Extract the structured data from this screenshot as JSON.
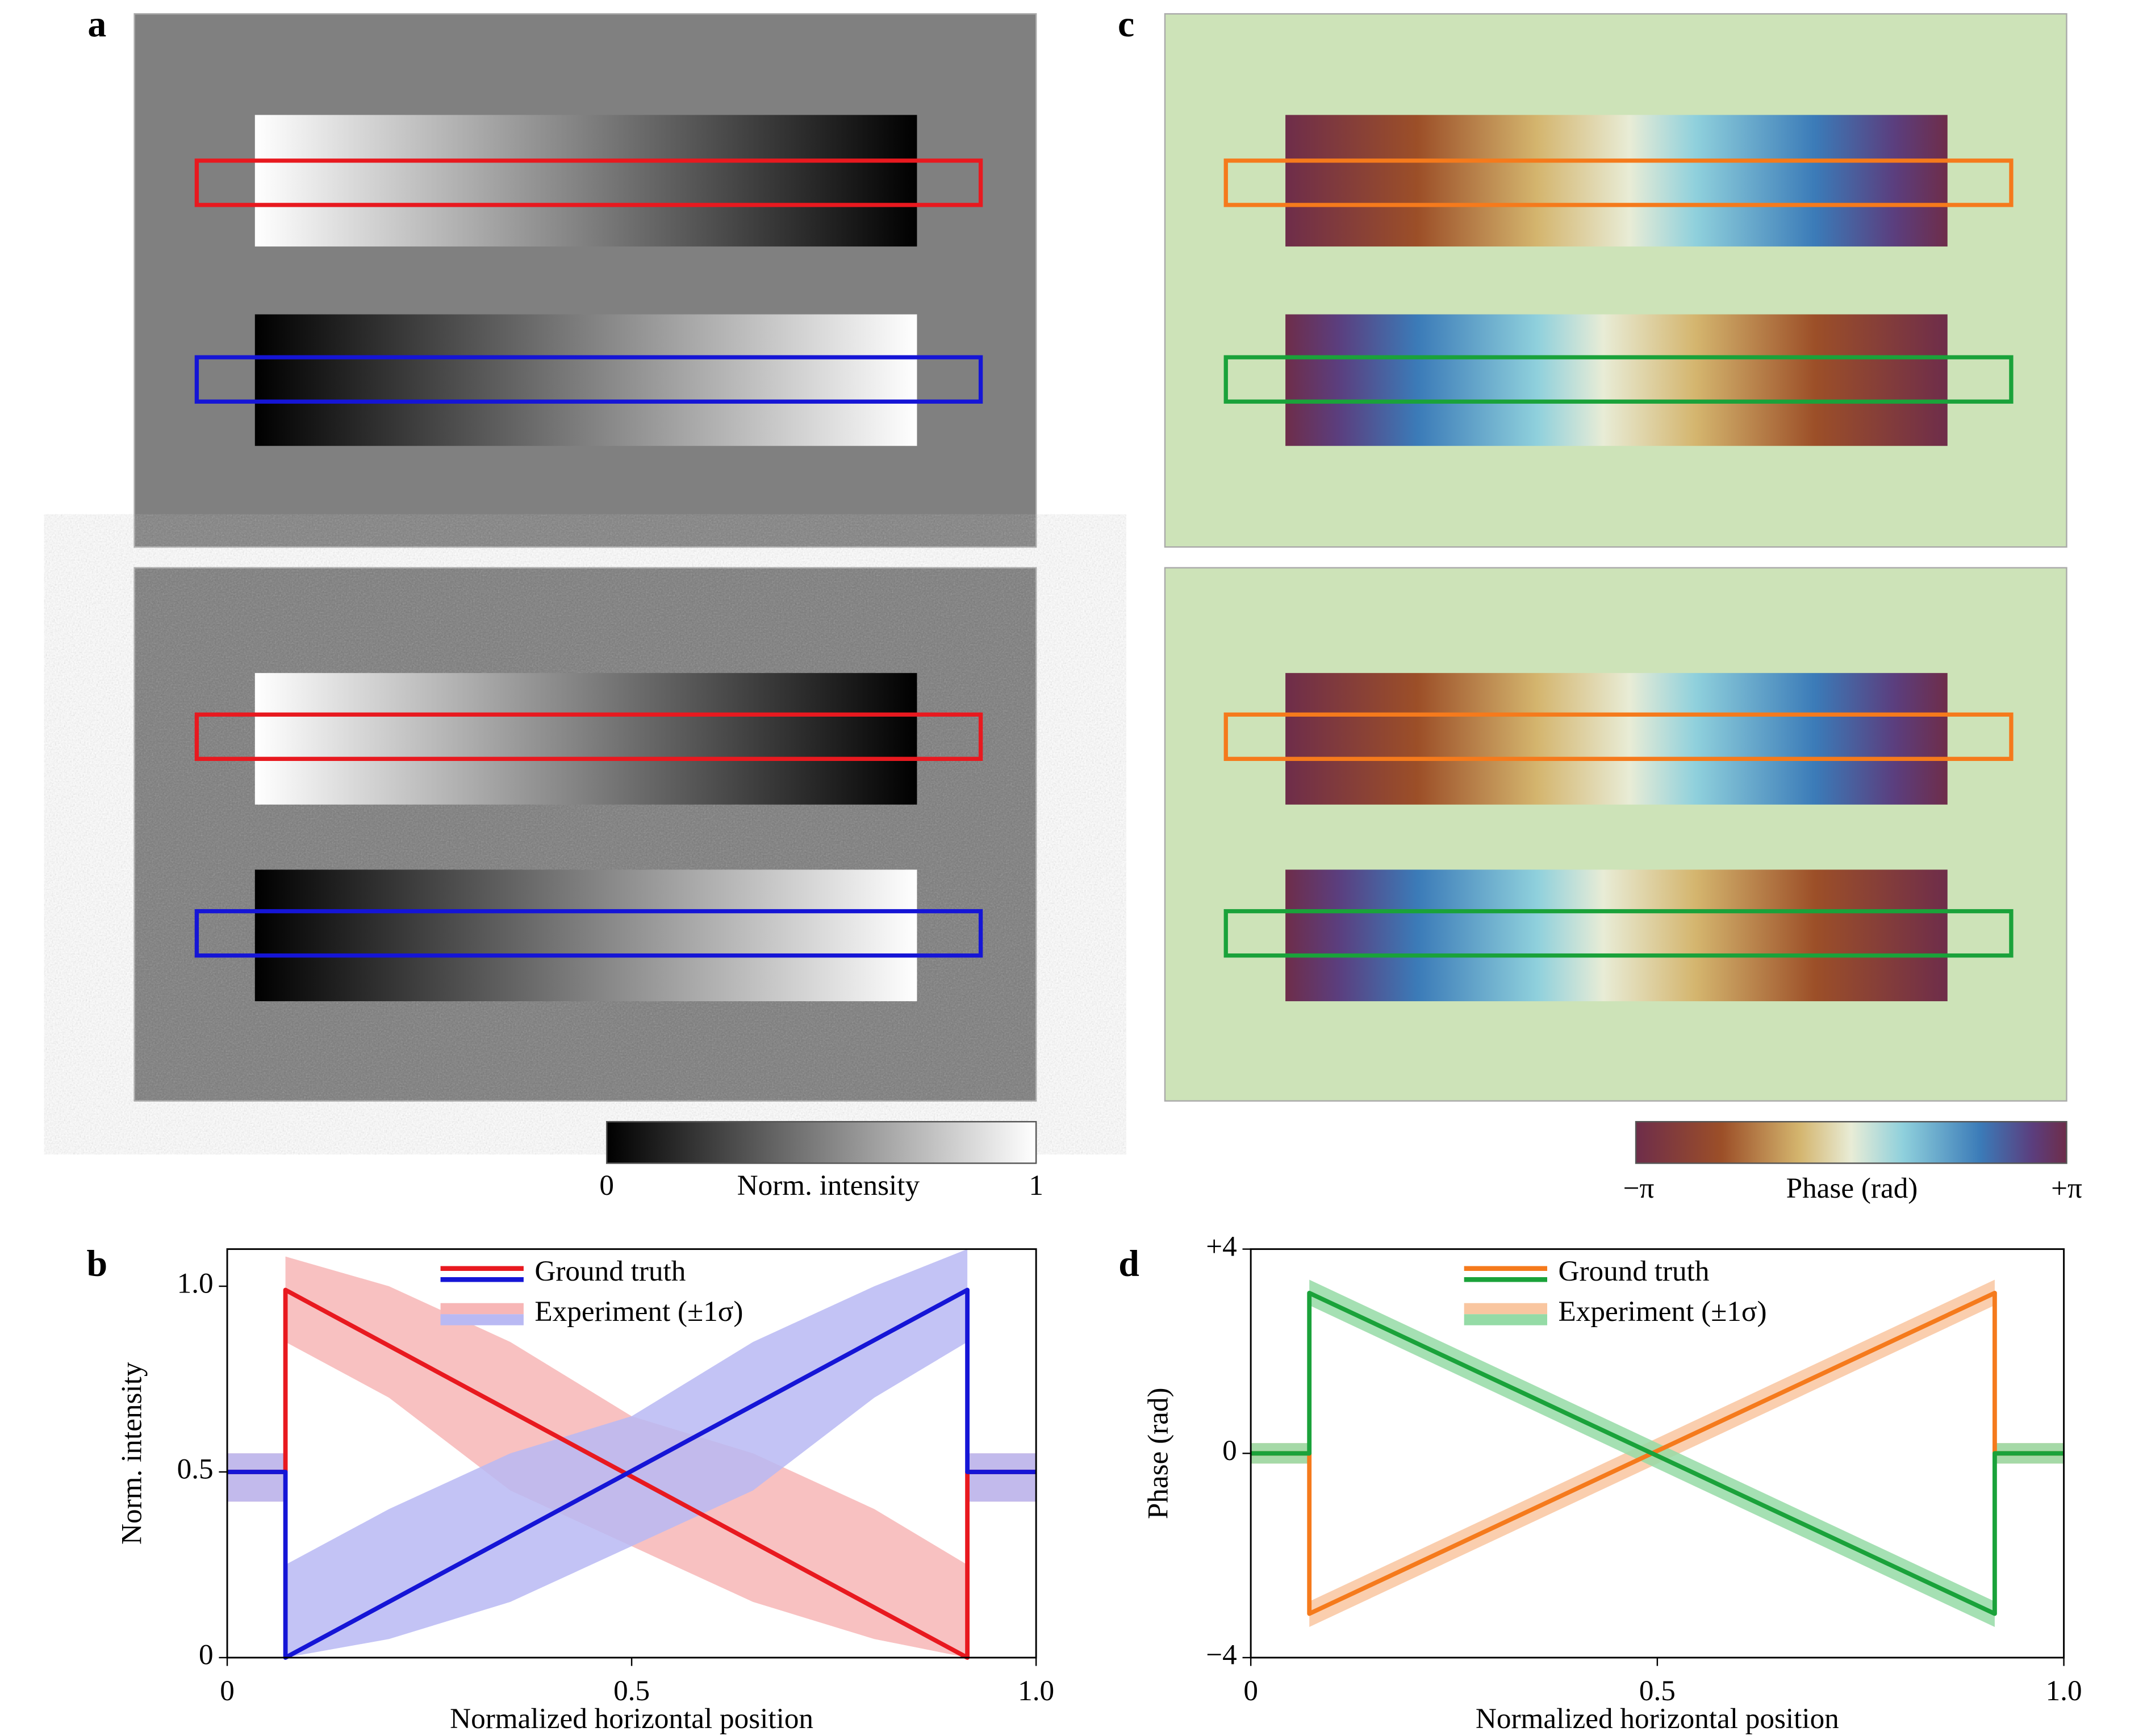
{
  "panel_labels": [
    "a",
    "b",
    "c",
    "d"
  ],
  "colorbars": [
    {
      "min_label": "0",
      "label": "Norm. intensity",
      "max_label": "1"
    },
    {
      "min_label": "−π",
      "label": "Phase (rad)",
      "max_label": "+π"
    }
  ],
  "chart_data": [
    {
      "type": "line",
      "xlabel": "Normalized horizontal position",
      "ylabel": "Norm. intensity",
      "xlim": [
        0,
        1
      ],
      "xticks": [
        0,
        0.5,
        {
          "value": 1,
          "label": "1.0"
        }
      ],
      "ylim": [
        0,
        1.1
      ],
      "yticks": [
        0,
        0.5,
        {
          "value": 1,
          "label": "1.0"
        }
      ],
      "legend": [
        {
          "label": "Ground truth",
          "style": "line",
          "colors": [
            "#e8191f",
            "#1515d6"
          ]
        },
        {
          "label": "Experiment (±1σ)",
          "style": "patch",
          "colors": [
            "#f7b6b6",
            "#b9b9f3"
          ]
        }
      ],
      "bands": [
        {
          "color": "#f7b6b6",
          "x": [
            0,
            0.072,
            0.072,
            0.2,
            0.35,
            0.5,
            0.65,
            0.8,
            0.915,
            0.915,
            1
          ],
          "lower": [
            0.42,
            0.42,
            0.85,
            0.7,
            0.45,
            0.3,
            0.15,
            0.05,
            0,
            0.42,
            0.42
          ],
          "upper": [
            0.55,
            0.55,
            1.08,
            1.0,
            0.85,
            0.65,
            0.55,
            0.4,
            0.25,
            0.55,
            0.55
          ]
        },
        {
          "color": "#b9b9f3",
          "x": [
            0,
            0.072,
            0.072,
            0.2,
            0.35,
            0.5,
            0.65,
            0.8,
            0.915,
            0.915,
            1
          ],
          "lower": [
            0.42,
            0.42,
            0,
            0.05,
            0.15,
            0.3,
            0.45,
            0.7,
            0.85,
            0.42,
            0.42
          ],
          "upper": [
            0.55,
            0.55,
            0.25,
            0.4,
            0.55,
            0.65,
            0.85,
            1.0,
            1.1,
            0.55,
            0.55
          ]
        }
      ],
      "series": [
        {
          "color": "#e8191f",
          "x": [
            0,
            0.072,
            0.072,
            0.915,
            0.915,
            1
          ],
          "values": [
            0.5,
            0.5,
            0.99,
            0,
            0.5,
            0.5
          ]
        },
        {
          "color": "#1515d6",
          "x": [
            0,
            0.072,
            0.072,
            0.915,
            0.915,
            1
          ],
          "values": [
            0.5,
            0.5,
            0,
            0.99,
            0.5,
            0.5
          ]
        }
      ]
    },
    {
      "type": "line",
      "xlabel": "Normalized horizontal position",
      "ylabel": "Phase (rad)",
      "xlim": [
        0,
        1
      ],
      "xticks": [
        0,
        0.5,
        {
          "value": 1,
          "label": "1.0"
        }
      ],
      "ylim": [
        -4,
        4
      ],
      "yticks": [
        {
          "value": -4,
          "label": "−4"
        },
        0,
        {
          "value": 4,
          "label": "+4"
        }
      ],
      "legend": [
        {
          "label": "Ground truth",
          "style": "line",
          "colors": [
            "#f57a1c",
            "#1aa23a"
          ]
        },
        {
          "label": "Experiment (±1σ)",
          "style": "patch",
          "colors": [
            "#f9c6a0",
            "#95dba6"
          ]
        }
      ],
      "bands": [
        {
          "color": "#f9c6a0",
          "x": [
            0,
            0.072,
            0.072,
            0.915,
            0.915,
            1
          ],
          "lower": [
            -0.2,
            -0.2,
            -3.4,
            2.9,
            -0.2,
            -0.2
          ],
          "upper": [
            0.2,
            0.2,
            -2.9,
            3.4,
            0.2,
            0.2
          ]
        },
        {
          "color": "#95dba6",
          "x": [
            0,
            0.072,
            0.072,
            0.915,
            0.915,
            1
          ],
          "lower": [
            -0.2,
            -0.2,
            2.9,
            -3.4,
            -0.2,
            -0.2
          ],
          "upper": [
            0.2,
            0.2,
            3.4,
            -2.9,
            0.2,
            0.2
          ]
        }
      ],
      "series": [
        {
          "color": "#f57a1c",
          "x": [
            0,
            0.072,
            0.072,
            0.915,
            0.915,
            1
          ],
          "values": [
            0,
            0,
            -3.14,
            3.14,
            0,
            0
          ]
        },
        {
          "color": "#1aa23a",
          "x": [
            0,
            0.072,
            0.072,
            0.915,
            0.915,
            1
          ],
          "values": [
            0,
            0,
            3.14,
            -3.14,
            0,
            0
          ]
        }
      ]
    }
  ]
}
